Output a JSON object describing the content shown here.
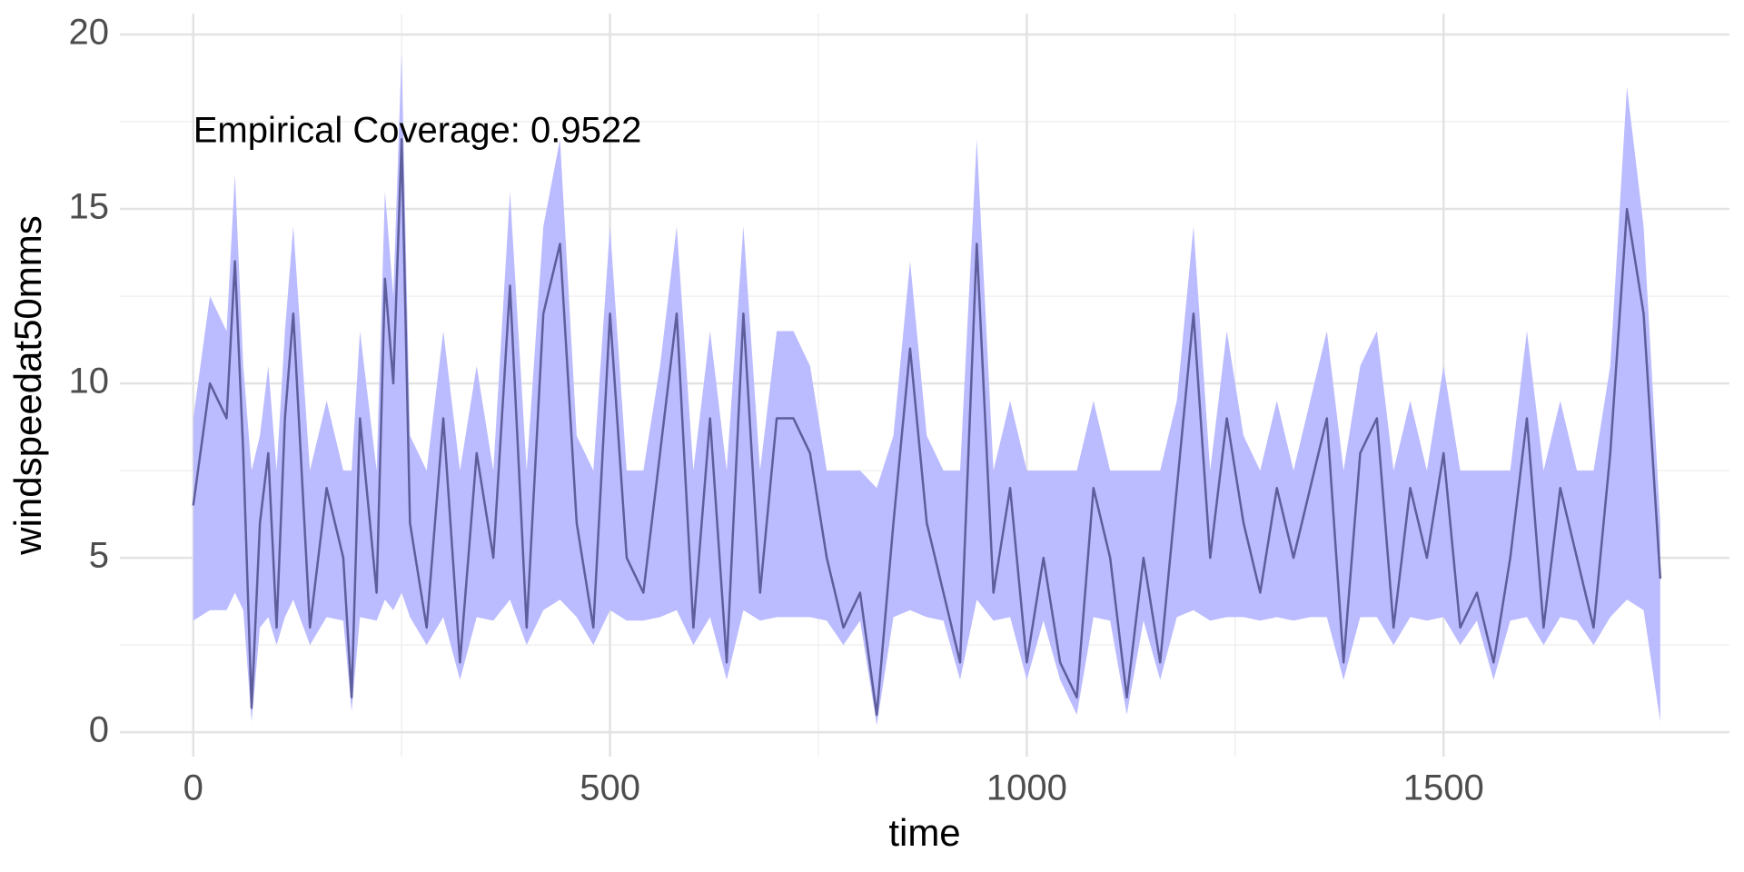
{
  "chart_data": {
    "type": "band_line",
    "x_label": "time",
    "y_label": "windspeedat50mms",
    "annotation": "Empirical Coverage: 0.9522",
    "line_color": "#5e5e9c",
    "band_color": "#bbbbff",
    "grid": true,
    "minor_grid": true,
    "xlim": [
      -88,
      1843
    ],
    "ylim": [
      -0.7,
      20.6
    ],
    "xticks": [
      0,
      500,
      1000,
      1500
    ],
    "yticks": [
      0,
      5,
      10,
      15,
      20
    ],
    "x": [
      0,
      20,
      40,
      50,
      60,
      70,
      80,
      90,
      100,
      110,
      120,
      140,
      160,
      180,
      190,
      200,
      220,
      230,
      240,
      250,
      260,
      280,
      300,
      320,
      340,
      360,
      380,
      400,
      420,
      440,
      460,
      480,
      500,
      520,
      540,
      560,
      580,
      600,
      620,
      640,
      660,
      680,
      700,
      720,
      740,
      760,
      780,
      800,
      820,
      840,
      860,
      880,
      900,
      920,
      940,
      960,
      980,
      1000,
      1020,
      1040,
      1060,
      1080,
      1100,
      1120,
      1140,
      1160,
      1180,
      1200,
      1220,
      1240,
      1260,
      1280,
      1300,
      1320,
      1340,
      1360,
      1380,
      1400,
      1420,
      1440,
      1460,
      1480,
      1500,
      1520,
      1540,
      1560,
      1580,
      1600,
      1620,
      1640,
      1660,
      1680,
      1700,
      1720,
      1740,
      1760
    ],
    "values": [
      6.5,
      10,
      9,
      13.5,
      8,
      0.7,
      6,
      8,
      3,
      9,
      12,
      3,
      7,
      5,
      1,
      9,
      4,
      13,
      10,
      17,
      6,
      3,
      9,
      2,
      8,
      5,
      12.8,
      3,
      12,
      14,
      6,
      3,
      12,
      5,
      4,
      8,
      12,
      3,
      9,
      2,
      12,
      4,
      9,
      9,
      8,
      5,
      3,
      4,
      0.5,
      6,
      11,
      6,
      4,
      2,
      14,
      4,
      7,
      2,
      5,
      2,
      1,
      7,
      5,
      1,
      5,
      2,
      7,
      12,
      5,
      9,
      6,
      4,
      7,
      5,
      7,
      9,
      2,
      8,
      9,
      3,
      7,
      5,
      8,
      3,
      4,
      2,
      5,
      9,
      3,
      7,
      5,
      3,
      8,
      15,
      12,
      4.4
    ],
    "upper": [
      9,
      12.5,
      11.5,
      16,
      10.5,
      7.5,
      8.5,
      10.5,
      7.5,
      11.5,
      14.5,
      7.5,
      9.5,
      7.5,
      7.5,
      11.5,
      7.5,
      15.5,
      12.5,
      19.5,
      8.5,
      7.5,
      11.5,
      7.5,
      10.5,
      7.5,
      15.5,
      7.5,
      14.5,
      17,
      8.5,
      7.5,
      14.5,
      7.5,
      7.5,
      10.5,
      14.5,
      7.5,
      11.5,
      7.5,
      14.5,
      7.5,
      11.5,
      11.5,
      10.5,
      7.5,
      7.5,
      7.5,
      7,
      8.5,
      13.5,
      8.5,
      7.5,
      7.5,
      17,
      7.5,
      9.5,
      7.5,
      7.5,
      7.5,
      7.5,
      9.5,
      7.5,
      7.5,
      7.5,
      7.5,
      9.5,
      14.5,
      7.5,
      11.5,
      8.5,
      7.5,
      9.5,
      7.5,
      9.5,
      11.5,
      7.5,
      10.5,
      11.5,
      7.5,
      9.5,
      7.5,
      10.5,
      7.5,
      7.5,
      7.5,
      7.5,
      11.5,
      7.5,
      9.5,
      7.5,
      7.5,
      10.5,
      18.5,
      14.5,
      6
    ],
    "lower": [
      3.2,
      3.5,
      3.5,
      4,
      3.5,
      0.3,
      3,
      3.3,
      2.5,
      3.3,
      3.8,
      2.5,
      3.3,
      3.2,
      0.6,
      3.3,
      3.2,
      3.8,
      3.5,
      4,
      3.3,
      2.5,
      3.3,
      1.5,
      3.3,
      3.2,
      3.8,
      2.5,
      3.5,
      3.8,
      3.3,
      2.5,
      3.5,
      3.2,
      3.2,
      3.3,
      3.5,
      2.5,
      3.3,
      1.5,
      3.5,
      3.2,
      3.3,
      3.3,
      3.3,
      3.2,
      2.5,
      3.2,
      0.2,
      3.3,
      3.5,
      3.3,
      3.2,
      1.5,
      3.8,
      3.2,
      3.3,
      1.5,
      3.2,
      1.5,
      0.5,
      3.3,
      3.2,
      0.5,
      3.2,
      1.5,
      3.3,
      3.5,
      3.2,
      3.3,
      3.3,
      3.2,
      3.3,
      3.2,
      3.3,
      3.3,
      1.5,
      3.3,
      3.3,
      2.5,
      3.3,
      3.2,
      3.3,
      2.5,
      3.2,
      1.5,
      3.2,
      3.3,
      2.5,
      3.3,
      3.2,
      2.5,
      3.3,
      3.8,
      3.5,
      0.3
    ]
  }
}
